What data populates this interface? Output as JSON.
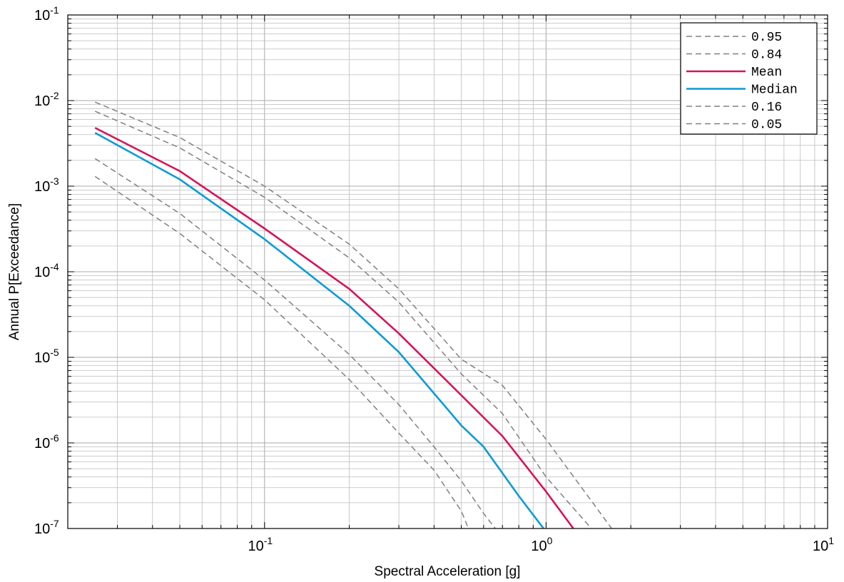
{
  "chart_data": {
    "type": "line",
    "title": "",
    "xlabel": "Spectral Acceleration [g]",
    "ylabel": "Annual P[Exceedance]",
    "xscale": "log",
    "yscale": "log",
    "xlim": [
      0.02,
      10
    ],
    "ylim": [
      1e-07,
      0.1
    ],
    "grid": true,
    "legend_position": "top-right",
    "x_ticks": [
      {
        "base": "10",
        "exp": "-1",
        "value": 0.1
      },
      {
        "base": "10",
        "exp": "0",
        "value": 1
      },
      {
        "base": "10",
        "exp": "1",
        "value": 10
      }
    ],
    "y_ticks": [
      {
        "base": "10",
        "exp": "-1",
        "value": 0.1
      },
      {
        "base": "10",
        "exp": "-2",
        "value": 0.01
      },
      {
        "base": "10",
        "exp": "-3",
        "value": 0.001
      },
      {
        "base": "10",
        "exp": "-4",
        "value": 0.0001
      },
      {
        "base": "10",
        "exp": "-5",
        "value": 1e-05
      },
      {
        "base": "10",
        "exp": "-6",
        "value": 1e-06
      },
      {
        "base": "10",
        "exp": "-7",
        "value": 1e-07
      }
    ],
    "series": [
      {
        "name": "0.95",
        "color": "#808080",
        "dash": true,
        "x": [
          0.025,
          0.05,
          0.1,
          0.2,
          0.3,
          0.5,
          0.7,
          1.0,
          1.5,
          1.71
        ],
        "y": [
          0.0096,
          0.0037,
          0.001,
          0.00021,
          6.3e-05,
          9.5e-06,
          4.7e-06,
          1.1e-06,
          1.8e-07,
          1e-07
        ]
      },
      {
        "name": "0.84",
        "color": "#808080",
        "dash": true,
        "x": [
          0.025,
          0.05,
          0.1,
          0.2,
          0.3,
          0.5,
          0.7,
          1.0,
          1.3,
          1.45
        ],
        "y": [
          0.0075,
          0.0028,
          0.00074,
          0.000145,
          4.4e-05,
          6.4e-06,
          2.2e-06,
          4e-07,
          1.5e-07,
          1e-07
        ]
      },
      {
        "name": "Mean",
        "color": "#d4145a",
        "dash": false,
        "x": [
          0.025,
          0.05,
          0.1,
          0.2,
          0.3,
          0.5,
          0.7,
          1.0,
          1.25
        ],
        "y": [
          0.0048,
          0.0015,
          0.00032,
          6.3e-05,
          1.9e-05,
          3.6e-06,
          1.2e-06,
          2.7e-07,
          1e-07
        ]
      },
      {
        "name": "Median",
        "color": "#0f9ad5",
        "dash": false,
        "x": [
          0.025,
          0.05,
          0.1,
          0.2,
          0.3,
          0.5,
          0.6,
          0.8,
          0.98
        ],
        "y": [
          0.0042,
          0.0012,
          0.00024,
          4e-05,
          1.15e-05,
          1.6e-06,
          9e-07,
          2.4e-07,
          1e-07
        ]
      },
      {
        "name": "0.16",
        "color": "#808080",
        "dash": true,
        "x": [
          0.025,
          0.05,
          0.1,
          0.2,
          0.3,
          0.4,
          0.5,
          0.6,
          0.66
        ],
        "y": [
          0.0021,
          0.00048,
          8e-05,
          1.08e-05,
          2.8e-06,
          9e-07,
          3.6e-07,
          1.5e-07,
          1e-07
        ]
      },
      {
        "name": "0.05",
        "color": "#808080",
        "dash": true,
        "x": [
          0.025,
          0.05,
          0.1,
          0.2,
          0.3,
          0.4,
          0.5,
          0.53
        ],
        "y": [
          0.0013,
          0.00028,
          4.7e-05,
          5.5e-06,
          1.3e-06,
          4.8e-07,
          1.6e-07,
          1e-07
        ]
      }
    ]
  }
}
